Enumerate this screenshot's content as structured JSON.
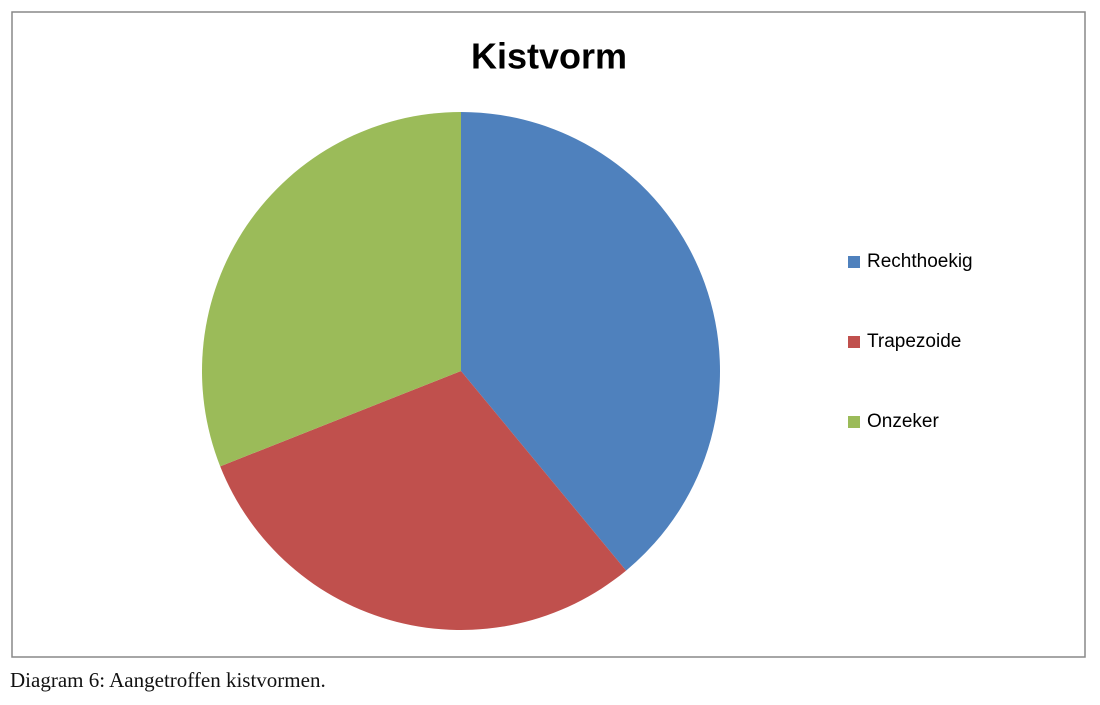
{
  "chart_data": {
    "type": "pie",
    "title": "Kistvorm",
    "categories": [
      "Rechthoekig",
      "Trapezoide",
      "Onzeker"
    ],
    "values": [
      39,
      30,
      31
    ],
    "colors": [
      "#4f81bd",
      "#c0504d",
      "#9bbb59"
    ],
    "legend": "right"
  },
  "caption": "Diagram 6: Aangetroffen kistvormen."
}
